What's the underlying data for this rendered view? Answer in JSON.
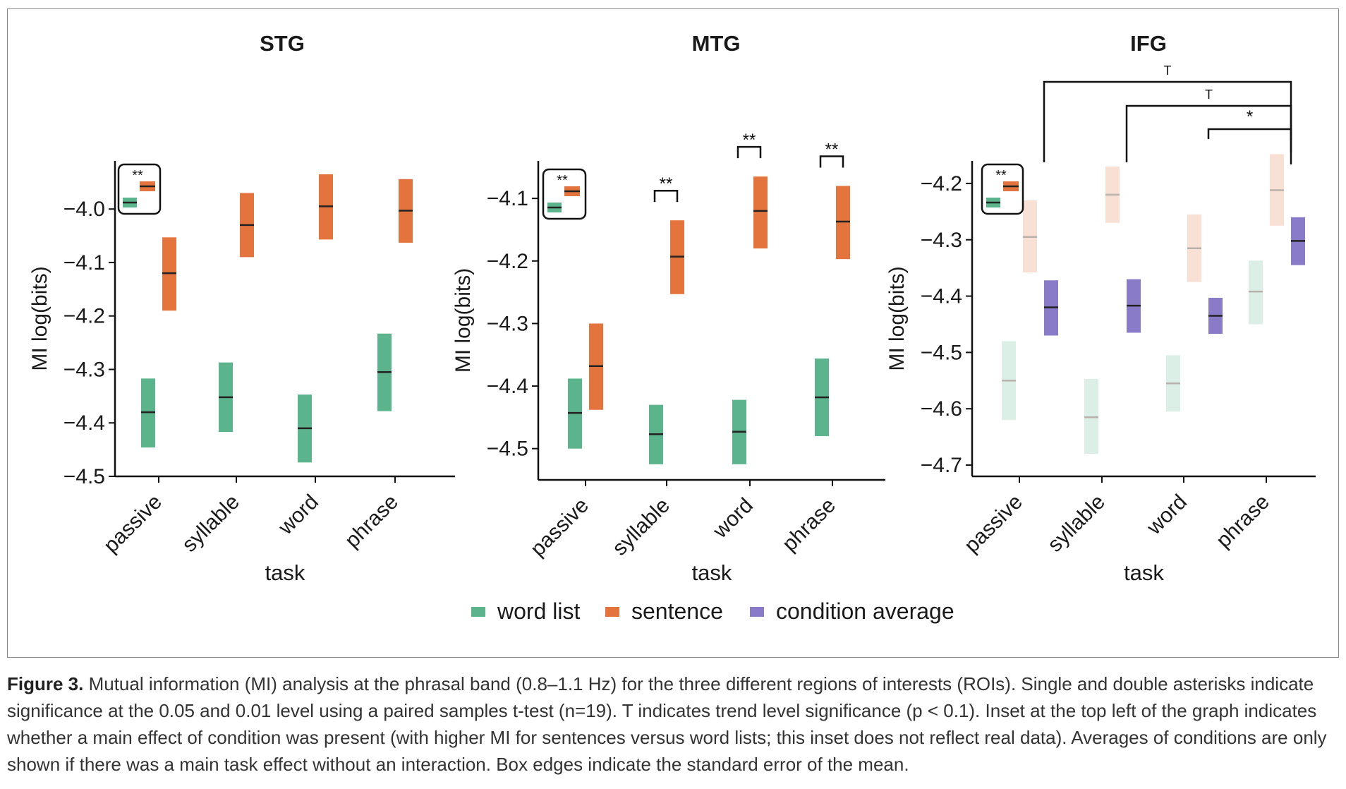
{
  "figure": {
    "legend": {
      "items": [
        {
          "label": "word list",
          "color": "#5bb48c"
        },
        {
          "label": "sentence",
          "color": "#e4743e"
        },
        {
          "label": "condition average",
          "color": "#8a7bc8"
        }
      ]
    },
    "inset_marker": "**"
  },
  "caption": {
    "label": "Figure 3.",
    "text": "Mutual information (MI) analysis at the phrasal band (0.8–1.1 Hz) for the three different regions of interests (ROIs). Single and double asterisks indicate significance at the 0.05 and 0.01 level using a paired samples t-test (n=19). T indicates trend level significance (p < 0.1). Inset at the top left of the graph indicates whether a main effect of condition was present (with higher MI for sentences versus word lists; this inset does not reflect real data). Averages of conditions are only shown if there was a main task effect without an interaction. Box edges indicate the standard error of the mean."
  },
  "chart_data": [
    {
      "type": "box",
      "title": "STG",
      "xlabel": "task",
      "ylabel": "MI log(bits)",
      "categories": [
        "passive",
        "syllable",
        "word",
        "phrase"
      ],
      "yticks": [
        "−4.0",
        "−4.1",
        "−4.2",
        "−4.3",
        "−4.4",
        "−4.5"
      ],
      "ytick_values": [
        -4.0,
        -4.1,
        -4.2,
        -4.3,
        -4.4,
        -4.5
      ],
      "ylim": [
        -4.5,
        -3.91
      ],
      "faded": false,
      "series": [
        {
          "name": "word list",
          "mean": [
            -4.38,
            -4.352,
            -4.41,
            -4.305
          ],
          "low": [
            -4.446,
            -4.417,
            -4.474,
            -4.378
          ],
          "high": [
            -4.317,
            -4.287,
            -4.347,
            -4.233
          ]
        },
        {
          "name": "sentence",
          "mean": [
            -4.12,
            -4.03,
            -3.995,
            -4.003
          ],
          "low": [
            -4.19,
            -4.09,
            -4.057,
            -4.063
          ],
          "high": [
            -4.053,
            -3.97,
            -3.935,
            -3.944
          ]
        }
      ],
      "comparisons": [],
      "inset": {
        "label": "**"
      }
    },
    {
      "type": "box",
      "title": "MTG",
      "xlabel": "task",
      "ylabel": "MI log(bits)",
      "categories": [
        "passive",
        "syllable",
        "word",
        "phrase"
      ],
      "yticks": [
        "−4.1",
        "−4.2",
        "−4.3",
        "−4.4",
        "−4.5"
      ],
      "ytick_values": [
        -4.1,
        -4.2,
        -4.3,
        -4.4,
        -4.5
      ],
      "ylim": [
        -4.55,
        -4.04
      ],
      "faded": false,
      "series": [
        {
          "name": "word list",
          "mean": [
            -4.443,
            -4.477,
            -4.473,
            -4.418
          ],
          "low": [
            -4.5,
            -4.525,
            -4.525,
            -4.48
          ],
          "high": [
            -4.388,
            -4.43,
            -4.422,
            -4.356
          ]
        },
        {
          "name": "sentence",
          "mean": [
            -4.368,
            -4.193,
            -4.12,
            -4.137
          ],
          "low": [
            -4.438,
            -4.253,
            -4.18,
            -4.197
          ],
          "high": [
            -4.3,
            -4.135,
            -4.065,
            -4.08
          ]
        }
      ],
      "comparisons": [
        {
          "label": "**",
          "category": "syllable"
        },
        {
          "label": "**",
          "category": "word"
        },
        {
          "label": "**",
          "category": "phrase"
        }
      ],
      "inset": {
        "label": "**"
      }
    },
    {
      "type": "box",
      "title": "IFG",
      "xlabel": "task",
      "ylabel": "MI log(bits)",
      "categories": [
        "passive",
        "syllable",
        "word",
        "phrase"
      ],
      "yticks": [
        "−4.2",
        "−4.3",
        "−4.4",
        "−4.5",
        "−4.6",
        "−4.7"
      ],
      "ytick_values": [
        -4.2,
        -4.3,
        -4.4,
        -4.5,
        -4.6,
        -4.7
      ],
      "ylim": [
        -4.72,
        -4.16
      ],
      "faded": true,
      "series": [
        {
          "name": "word list",
          "mean": [
            -4.55,
            -4.615,
            -4.555,
            -4.392
          ],
          "low": [
            -4.62,
            -4.68,
            -4.605,
            -4.45
          ],
          "high": [
            -4.48,
            -4.547,
            -4.505,
            -4.337
          ]
        },
        {
          "name": "sentence",
          "mean": [
            -4.295,
            -4.22,
            -4.315,
            -4.212
          ],
          "low": [
            -4.358,
            -4.27,
            -4.375,
            -4.275
          ],
          "high": [
            -4.23,
            -4.17,
            -4.255,
            -4.148
          ]
        },
        {
          "name": "condition average",
          "mean": [
            -4.42,
            -4.417,
            -4.435,
            -4.302
          ],
          "low": [
            -4.47,
            -4.465,
            -4.467,
            -4.345
          ],
          "high": [
            -4.372,
            -4.37,
            -4.403,
            -4.26
          ]
        }
      ],
      "comparisons": [
        {
          "label": "T",
          "from": "passive",
          "to": "phrase"
        },
        {
          "label": "T",
          "from": "syllable",
          "to": "phrase"
        },
        {
          "label": "*",
          "from": "word",
          "to": "phrase"
        }
      ],
      "inset": {
        "label": "**"
      }
    }
  ]
}
